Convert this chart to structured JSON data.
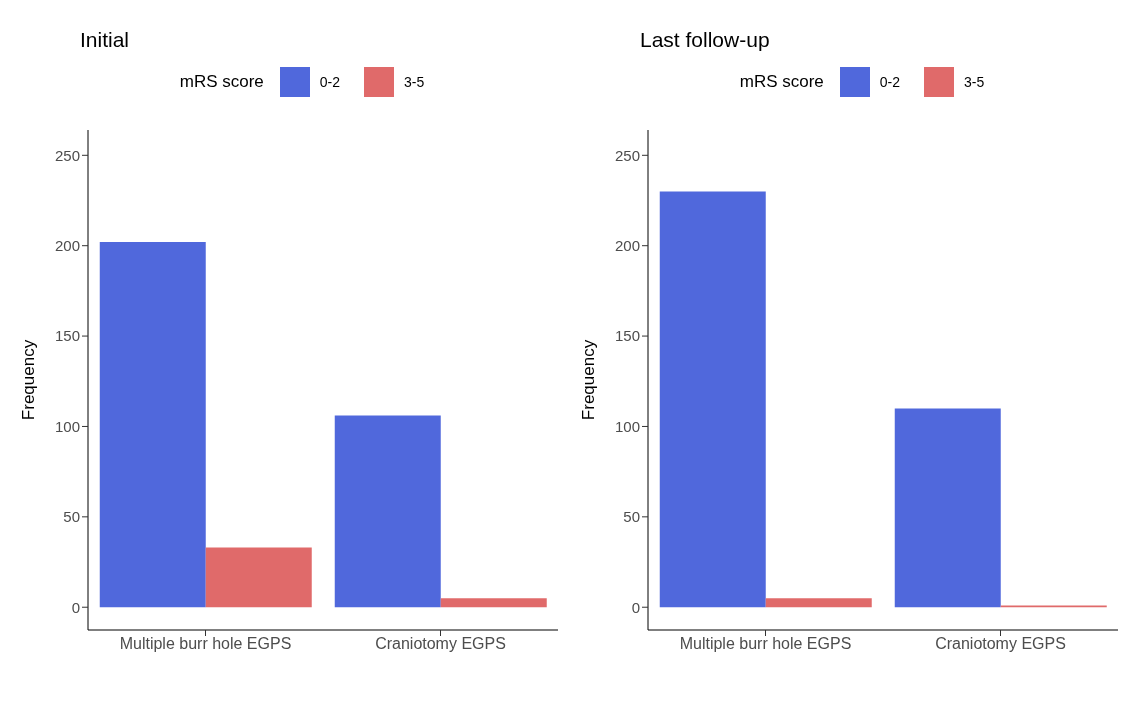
{
  "chart_data": [
    {
      "type": "bar",
      "title": "Initial",
      "legend_title": "mRS score",
      "ylabel": "Frequency",
      "categories": [
        "Multiple burr hole EGPS",
        "Craniotomy EGPS"
      ],
      "series": [
        {
          "name": "0-2",
          "color": "#5068dc",
          "values": [
            202,
            106
          ]
        },
        {
          "name": "3-5",
          "color": "#e06a6a",
          "values": [
            33,
            5
          ]
        }
      ],
      "ylim": [
        -12.6,
        264
      ],
      "yticks": [
        0,
        50,
        100,
        150,
        200,
        250
      ],
      "grid": false,
      "legend": "top"
    },
    {
      "type": "bar",
      "title": "Last follow-up",
      "legend_title": "mRS score",
      "ylabel": "Frequency",
      "categories": [
        "Multiple burr hole EGPS",
        "Craniotomy EGPS"
      ],
      "series": [
        {
          "name": "0-2",
          "color": "#5068dc",
          "values": [
            230,
            110
          ]
        },
        {
          "name": "3-5",
          "color": "#e06a6a",
          "values": [
            5,
            1
          ]
        }
      ],
      "ylim": [
        -12.6,
        264
      ],
      "yticks": [
        0,
        50,
        100,
        150,
        200,
        250
      ],
      "grid": false,
      "legend": "top"
    }
  ]
}
